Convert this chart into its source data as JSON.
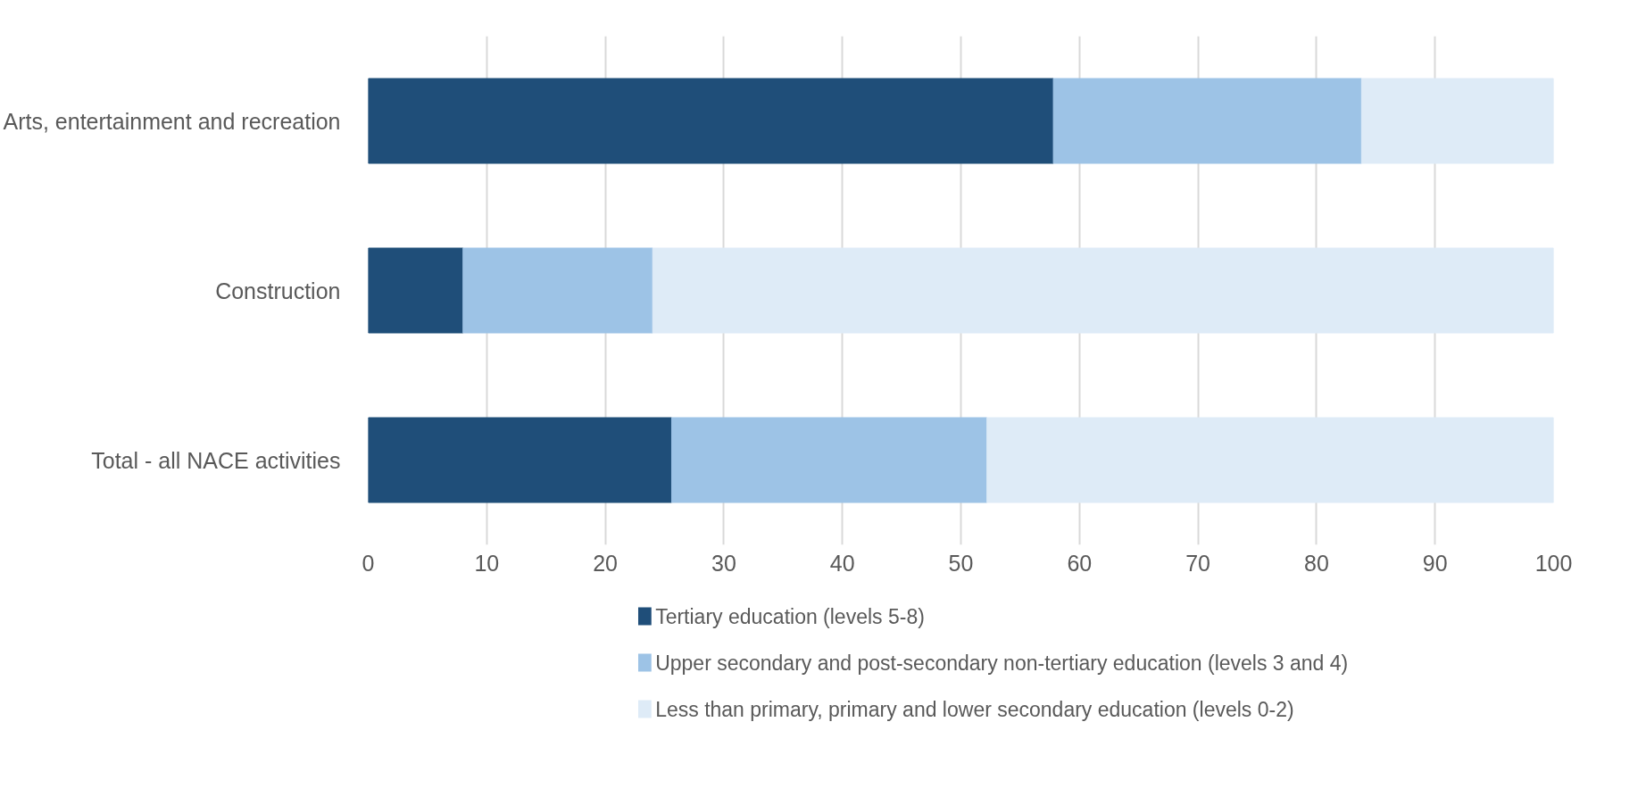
{
  "chart_data": {
    "type": "bar",
    "orientation": "horizontal",
    "stacked": true,
    "categories": [
      "Arts, entertainment and recreation",
      "Construction",
      "Total - all NACE activities"
    ],
    "series": [
      {
        "name": "Tertiary education (levels 5-8)",
        "color": "#1f4e79",
        "values": [
          57.8,
          8.0,
          25.6
        ]
      },
      {
        "name": "Upper secondary and post-secondary non-tertiary education (levels 3 and 4)",
        "color": "#9dc3e6",
        "values": [
          26.0,
          16.0,
          26.6
        ]
      },
      {
        "name": "Less than primary, primary and lower secondary education (levels 0-2)",
        "color": "#deebf7",
        "values": [
          16.2,
          76.0,
          47.8
        ]
      }
    ],
    "xlim": [
      0,
      100
    ],
    "xticks": [
      0,
      10,
      20,
      30,
      40,
      50,
      60,
      70,
      80,
      90,
      100
    ],
    "grid": "x",
    "legend": "bottom"
  }
}
